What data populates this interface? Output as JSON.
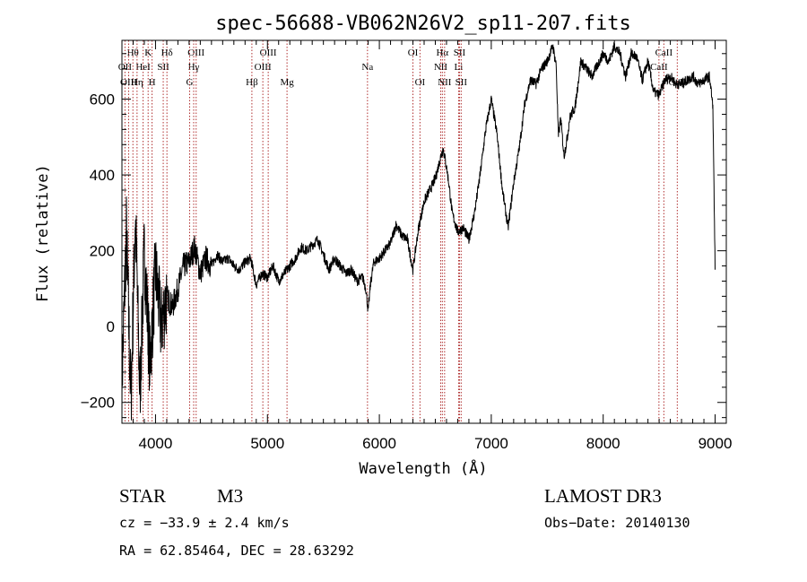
{
  "chart_data": {
    "type": "line",
    "title": "spec-56688-VB062N26V2_sp11-207.fits",
    "xlabel": "Wavelength (Å)",
    "ylabel": "Flux (relative)",
    "xlim": [
      3700,
      9100
    ],
    "ylim": [
      -255,
      755
    ],
    "xticks": [
      4000,
      5000,
      6000,
      7000,
      8000,
      9000
    ],
    "yticks": [
      -200,
      0,
      200,
      400,
      600
    ],
    "series": [
      {
        "name": "flux",
        "x": [
          3700,
          3740,
          3780,
          3820,
          3860,
          3900,
          3950,
          4000,
          4050,
          4100,
          4150,
          4200,
          4250,
          4300,
          4350,
          4400,
          4450,
          4500,
          4550,
          4600,
          4650,
          4700,
          4750,
          4800,
          4850,
          4900,
          4950,
          5000,
          5050,
          5100,
          5150,
          5200,
          5250,
          5300,
          5350,
          5400,
          5450,
          5500,
          5550,
          5600,
          5650,
          5700,
          5750,
          5800,
          5850,
          5880,
          5900,
          5920,
          5950,
          6000,
          6050,
          6100,
          6150,
          6200,
          6250,
          6300,
          6350,
          6400,
          6450,
          6500,
          6550,
          6570,
          6600,
          6620,
          6650,
          6700,
          6750,
          6800,
          6850,
          6900,
          6950,
          7000,
          7050,
          7100,
          7150,
          7200,
          7250,
          7300,
          7350,
          7400,
          7450,
          7500,
          7550,
          7580,
          7600,
          7620,
          7650,
          7680,
          7700,
          7750,
          7800,
          7850,
          7900,
          7950,
          8000,
          8050,
          8100,
          8150,
          8200,
          8250,
          8300,
          8350,
          8400,
          8450,
          8500,
          8550,
          8600,
          8650,
          8700,
          8750,
          8800,
          8850,
          8900,
          8950,
          8980,
          9000
        ],
        "y": [
          -150,
          250,
          -200,
          300,
          -180,
          200,
          -100,
          150,
          0,
          80,
          50,
          100,
          160,
          170,
          210,
          140,
          180,
          160,
          190,
          170,
          180,
          160,
          150,
          170,
          180,
          110,
          140,
          130,
          160,
          120,
          140,
          160,
          180,
          210,
          200,
          215,
          230,
          190,
          150,
          180,
          160,
          140,
          150,
          120,
          130,
          100,
          40,
          110,
          170,
          180,
          200,
          220,
          270,
          240,
          230,
          150,
          260,
          330,
          360,
          390,
          450,
          470,
          420,
          380,
          300,
          250,
          260,
          230,
          300,
          400,
          520,
          600,
          510,
          360,
          260,
          380,
          470,
          590,
          650,
          640,
          680,
          700,
          740,
          690,
          500,
          550,
          450,
          500,
          550,
          580,
          700,
          680,
          660,
          690,
          720,
          700,
          740,
          720,
          660,
          720,
          710,
          650,
          700,
          620,
          610,
          650,
          660,
          640,
          640,
          650,
          660,
          640,
          650,
          660,
          580,
          150
        ]
      }
    ],
    "lines": [
      {
        "label": "Hθ",
        "wavelength": 3798,
        "tier": 1
      },
      {
        "label": "OII",
        "wavelength": 3727,
        "tier": 2
      },
      {
        "label": "OIII",
        "wavelength": 3760,
        "tier": 3
      },
      {
        "label": "K",
        "wavelength": 3934,
        "tier": 1
      },
      {
        "label": "HeI",
        "wavelength": 3889,
        "tier": 2
      },
      {
        "label": "Hη",
        "wavelength": 3835,
        "tier": 3
      },
      {
        "label": "SII",
        "wavelength": 4069,
        "tier": 2
      },
      {
        "label": "H",
        "wavelength": 3969,
        "tier": 3
      },
      {
        "label": "Hδ",
        "wavelength": 4102,
        "tier": 1
      },
      {
        "label": "OIII",
        "wavelength": 4363,
        "tier": 1
      },
      {
        "label": "Hγ",
        "wavelength": 4341,
        "tier": 2
      },
      {
        "label": "G",
        "wavelength": 4305,
        "tier": 3
      },
      {
        "label": "Hβ",
        "wavelength": 4861,
        "tier": 3
      },
      {
        "label": "OIII",
        "wavelength": 5007,
        "tier": 1
      },
      {
        "label": "OIII",
        "wavelength": 4959,
        "tier": 2
      },
      {
        "label": "Mg",
        "wavelength": 5175,
        "tier": 3
      },
      {
        "label": "Na",
        "wavelength": 5894,
        "tier": 2
      },
      {
        "label": "OI",
        "wavelength": 6300,
        "tier": 1
      },
      {
        "label": "OI",
        "wavelength": 6363,
        "tier": 3
      },
      {
        "label": "Hα",
        "wavelength": 6563,
        "tier": 1
      },
      {
        "label": "SII",
        "wavelength": 6716,
        "tier": 1
      },
      {
        "label": "NII",
        "wavelength": 6548,
        "tier": 2
      },
      {
        "label": "Li",
        "wavelength": 6708,
        "tier": 2
      },
      {
        "label": "NII",
        "wavelength": 6583,
        "tier": 3
      },
      {
        "label": "SII",
        "wavelength": 6731,
        "tier": 3
      },
      {
        "label": "CaII",
        "wavelength": 8542,
        "tier": 1
      },
      {
        "label": "CaII",
        "wavelength": 8498,
        "tier": 2
      },
      {
        "label": "CaII",
        "wavelength": 8662,
        "tier": 3
      }
    ],
    "line_color": "#b03030"
  },
  "info": {
    "object_class": "STAR",
    "subclass": "M3",
    "survey": "LAMOST DR3",
    "cz": "cz = −33.9 ± 2.4 km/s",
    "obs_date": "Obs−Date: 20140130",
    "coords": "RA =  62.85464, DEC =  28.63292"
  }
}
